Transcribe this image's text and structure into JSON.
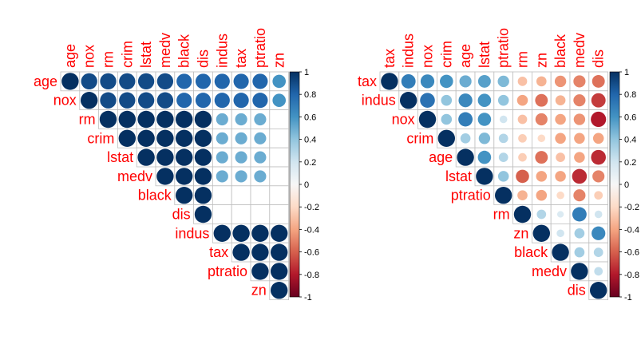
{
  "chart_data": [
    {
      "type": "heatmap",
      "subtype": "correlation-circles-upper",
      "variables": [
        "age",
        "nox",
        "rm",
        "crim",
        "lstat",
        "medv",
        "black",
        "dis",
        "indus",
        "tax",
        "ptratio",
        "zn"
      ],
      "matrix": [
        [
          1.0,
          0.9,
          0.9,
          0.9,
          0.9,
          0.9,
          0.8,
          0.8,
          0.8,
          0.8,
          0.8,
          0.6
        ],
        [
          null,
          1.0,
          0.9,
          0.9,
          0.9,
          0.9,
          0.8,
          0.8,
          0.8,
          0.8,
          0.8,
          0.6
        ],
        [
          null,
          null,
          1.0,
          1.0,
          1.0,
          1.0,
          1.0,
          1.0,
          0.5,
          0.5,
          0.5,
          null
        ],
        [
          null,
          null,
          null,
          1.0,
          1.0,
          1.0,
          1.0,
          1.0,
          0.5,
          0.5,
          0.5,
          null
        ],
        [
          null,
          null,
          null,
          null,
          1.0,
          1.0,
          1.0,
          1.0,
          0.5,
          0.5,
          0.5,
          null
        ],
        [
          null,
          null,
          null,
          null,
          null,
          1.0,
          1.0,
          1.0,
          0.5,
          0.5,
          0.5,
          null
        ],
        [
          null,
          null,
          null,
          null,
          null,
          null,
          1.0,
          1.0,
          null,
          null,
          null,
          null
        ],
        [
          null,
          null,
          null,
          null,
          null,
          null,
          null,
          1.0,
          null,
          null,
          null,
          null
        ],
        [
          null,
          null,
          null,
          null,
          null,
          null,
          null,
          null,
          1.0,
          1.0,
          1.0,
          1.0
        ],
        [
          null,
          null,
          null,
          null,
          null,
          null,
          null,
          null,
          null,
          1.0,
          1.0,
          1.0
        ],
        [
          null,
          null,
          null,
          null,
          null,
          null,
          null,
          null,
          null,
          null,
          1.0,
          1.0
        ],
        [
          null,
          null,
          null,
          null,
          null,
          null,
          null,
          null,
          null,
          null,
          null,
          1.0
        ]
      ],
      "colorbar_ticks": [
        "1",
        "0.8",
        "0.6",
        "0.4",
        "0.2",
        "0",
        "-0.2",
        "-0.4",
        "-0.6",
        "-0.8",
        "-1"
      ],
      "colorbar_range": [
        -1,
        1
      ]
    },
    {
      "type": "heatmap",
      "subtype": "correlation-circles-upper",
      "variables": [
        "tax",
        "indus",
        "nox",
        "crim",
        "age",
        "lstat",
        "ptratio",
        "rm",
        "zn",
        "black",
        "medv",
        "dis"
      ],
      "matrix": [
        [
          1.0,
          0.7,
          0.65,
          0.6,
          0.5,
          0.55,
          0.45,
          -0.3,
          -0.35,
          -0.45,
          -0.5,
          -0.55
        ],
        [
          null,
          1.0,
          0.75,
          0.4,
          0.65,
          0.6,
          0.4,
          -0.4,
          -0.55,
          -0.35,
          -0.5,
          -0.7
        ],
        [
          null,
          null,
          1.0,
          0.4,
          0.7,
          0.6,
          0.2,
          -0.3,
          -0.5,
          -0.4,
          -0.45,
          -0.8
        ],
        [
          null,
          null,
          null,
          1.0,
          0.35,
          0.45,
          0.3,
          -0.25,
          -0.2,
          -0.4,
          -0.4,
          -0.4
        ],
        [
          null,
          null,
          null,
          null,
          1.0,
          0.6,
          0.3,
          -0.25,
          -0.55,
          -0.3,
          -0.4,
          -0.75
        ],
        [
          null,
          null,
          null,
          null,
          null,
          1.0,
          0.4,
          -0.6,
          -0.4,
          -0.4,
          -0.75,
          -0.5
        ],
        [
          null,
          null,
          null,
          null,
          null,
          null,
          1.0,
          -0.35,
          -0.4,
          -0.2,
          -0.5,
          -0.25
        ],
        [
          null,
          null,
          null,
          null,
          null,
          null,
          null,
          1.0,
          0.3,
          0.15,
          0.7,
          0.2
        ],
        [
          null,
          null,
          null,
          null,
          null,
          null,
          null,
          null,
          1.0,
          0.2,
          0.35,
          0.65
        ],
        [
          null,
          null,
          null,
          null,
          null,
          null,
          null,
          null,
          null,
          1.0,
          0.35,
          0.3
        ],
        [
          null,
          null,
          null,
          null,
          null,
          null,
          null,
          null,
          null,
          null,
          1.0,
          0.25
        ],
        [
          null,
          null,
          null,
          null,
          null,
          null,
          null,
          null,
          null,
          null,
          null,
          1.0
        ]
      ],
      "colorbar_ticks": [
        "1",
        "0.8",
        "0.6",
        "0.4",
        "0.2",
        "0",
        "-0.2",
        "-0.4",
        "-0.6",
        "-0.8",
        "-1"
      ],
      "colorbar_range": [
        -1,
        1
      ]
    }
  ]
}
